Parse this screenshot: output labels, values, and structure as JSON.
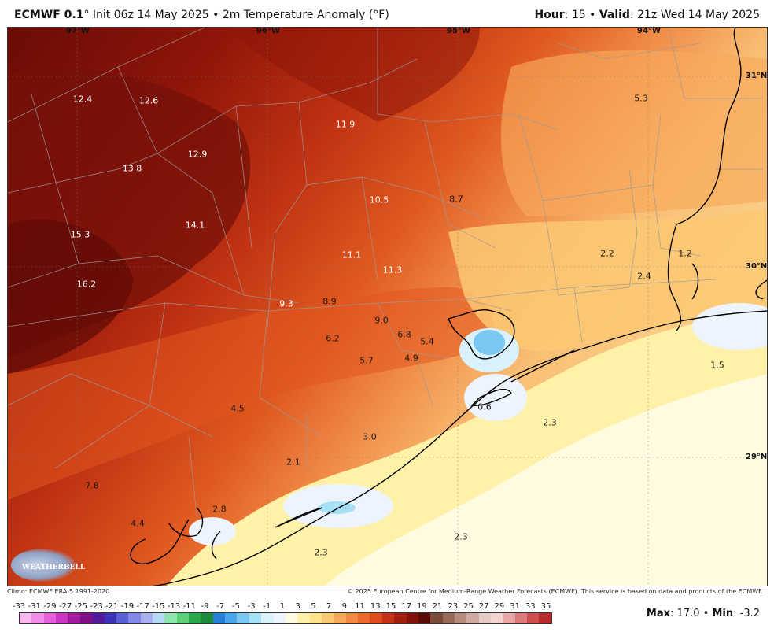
{
  "header": {
    "model": "ECMWF 0.1",
    "degree_symbol": "°",
    "init": "Init 06z 14 May 2025",
    "bullet": "•",
    "field": "2m Temperature Anomaly (°F)",
    "hour_label": "Hour",
    "hour_value": ": 15",
    "valid_label": "Valid",
    "valid_value": ": 21z Wed 14 May 2025"
  },
  "map": {
    "longitudes": [
      "97°W",
      "96°W",
      "95°W",
      "94°W"
    ],
    "latitudes": [
      "31°N",
      "30°N",
      "29°N"
    ],
    "labels": [
      {
        "text": "12.4",
        "light": true
      },
      {
        "text": "12.6",
        "light": true
      },
      {
        "text": "11.9",
        "light": true
      },
      {
        "text": "5.3",
        "light": false
      },
      {
        "text": "12.9",
        "light": true
      },
      {
        "text": "13.8",
        "light": true
      },
      {
        "text": "10.5",
        "light": true
      },
      {
        "text": "8.7",
        "light": false
      },
      {
        "text": "15.3",
        "light": true
      },
      {
        "text": "14.1",
        "light": true
      },
      {
        "text": "2.2",
        "light": false
      },
      {
        "text": "1.2",
        "light": false
      },
      {
        "text": "11.1",
        "light": true
      },
      {
        "text": "11.3",
        "light": true
      },
      {
        "text": "2.4",
        "light": false
      },
      {
        "text": "16.2",
        "light": true
      },
      {
        "text": "9.3",
        "light": true
      },
      {
        "text": "8.9",
        "light": false
      },
      {
        "text": "9.0",
        "light": false
      },
      {
        "text": "6.8",
        "light": false
      },
      {
        "text": "5.4",
        "light": false
      },
      {
        "text": "6.2",
        "light": false
      },
      {
        "text": "5.7",
        "light": false
      },
      {
        "text": "4.9",
        "light": false
      },
      {
        "text": "1.5",
        "light": false
      },
      {
        "text": "0.6",
        "light": false
      },
      {
        "text": "4.5",
        "light": false
      },
      {
        "text": "2.3",
        "light": false
      },
      {
        "text": "3.0",
        "light": false
      },
      {
        "text": "2.1",
        "light": false
      },
      {
        "text": "7.8",
        "light": false
      },
      {
        "text": "2.8",
        "light": false
      },
      {
        "text": "4.4",
        "light": false
      },
      {
        "text": "2.3",
        "light": false
      },
      {
        "text": "2.3",
        "light": false
      }
    ]
  },
  "logo": "WEATHERBELL",
  "footer": {
    "climo": "Climo: ECMWF ERA-5 1991-2020",
    "copyright": "© 2025 European Centre for Medium-Range Weather Forecasts (ECMWF). This service is based on data and products of the ECMWF."
  },
  "colorbar": {
    "ticks": [
      "-33",
      "-31",
      "-29",
      "-27",
      "-25",
      "-23",
      "-21",
      "-19",
      "-17",
      "-15",
      "-13",
      "-11",
      "-9",
      "-7",
      "-5",
      "-3",
      "-1",
      "1",
      "3",
      "5",
      "7",
      "9",
      "11",
      "13",
      "15",
      "17",
      "19",
      "21",
      "23",
      "25",
      "27",
      "29",
      "31",
      "33",
      "35"
    ],
    "colors": [
      "#f9b8f0",
      "#f08ee8",
      "#e45fd9",
      "#cc36c4",
      "#a3199f",
      "#7e0f86",
      "#531a9e",
      "#3b33b8",
      "#5a5fd4",
      "#8288e6",
      "#a9afef",
      "#b8d9f3",
      "#8ee5b0",
      "#5ccf77",
      "#2ba84a",
      "#1c8a3a",
      "#2a7fd8",
      "#4aa6ea",
      "#78c8f2",
      "#a6e0f6",
      "#d9f1fb",
      "#eef4fd",
      "#fffbe0",
      "#fff2a8",
      "#ffe28a",
      "#fbc873",
      "#f7a95a",
      "#f28841",
      "#ec6a2c",
      "#e04a1c",
      "#c53114",
      "#a31d0e",
      "#821208",
      "#5c0a05",
      "#7a4a3a",
      "#9a6a5a",
      "#b68a7c",
      "#cfaaa0",
      "#e6cbc4",
      "#f1d6d0",
      "#e8a8a8",
      "#dc7a7a",
      "#cc4e4e",
      "#b72a2a"
    ]
  },
  "stats": {
    "max_label": "Max",
    "max_value": ": 17.0",
    "min_label": "Min",
    "min_value": ": -3.2"
  }
}
